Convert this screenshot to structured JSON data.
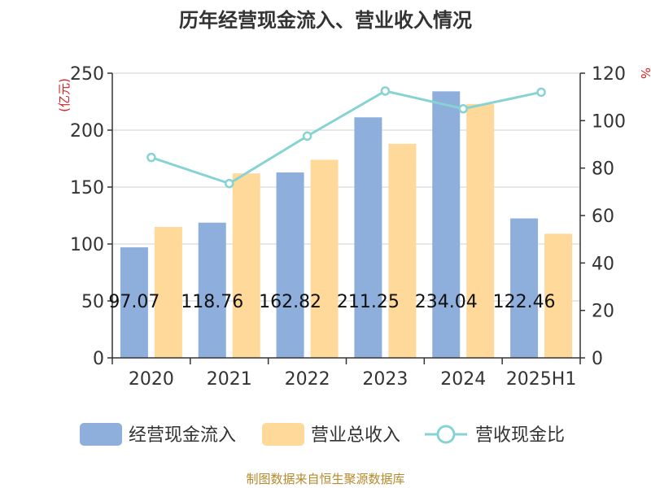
{
  "chart_data": {
    "type": "bar",
    "title": "历年经营现金流入、营业收入情况",
    "categories": [
      "2020",
      "2021",
      "2022",
      "2023",
      "2024",
      "2025H1"
    ],
    "series": [
      {
        "name": "经营现金流入",
        "type": "bar",
        "axis": "left",
        "color": "#8eaedc",
        "values": [
          97.07,
          118.76,
          162.82,
          211.25,
          234.04,
          122.46
        ],
        "data_labels": [
          "97.07",
          "118.76",
          "162.82",
          "211.25",
          "234.04",
          "122.46"
        ]
      },
      {
        "name": "营业总收入",
        "type": "bar",
        "axis": "left",
        "color": "#ffd99a",
        "values": [
          115,
          162,
          174,
          188,
          223,
          109
        ]
      },
      {
        "name": "营收现金比",
        "type": "line",
        "axis": "right",
        "color": "#87d3d4",
        "values": [
          84.5,
          73.5,
          93.5,
          112.5,
          105,
          112
        ]
      }
    ],
    "left_axis": {
      "unit": "(亿元)",
      "ylim": [
        0,
        250
      ],
      "ticks": [
        0,
        50,
        100,
        150,
        200,
        250
      ]
    },
    "right_axis": {
      "unit": "%",
      "ylim": [
        0,
        120
      ],
      "ticks": [
        0,
        20,
        40,
        60,
        80,
        100,
        120
      ]
    },
    "grid": true,
    "legend_position": "bottom"
  },
  "source": "制图数据来自恒生聚源数据库"
}
